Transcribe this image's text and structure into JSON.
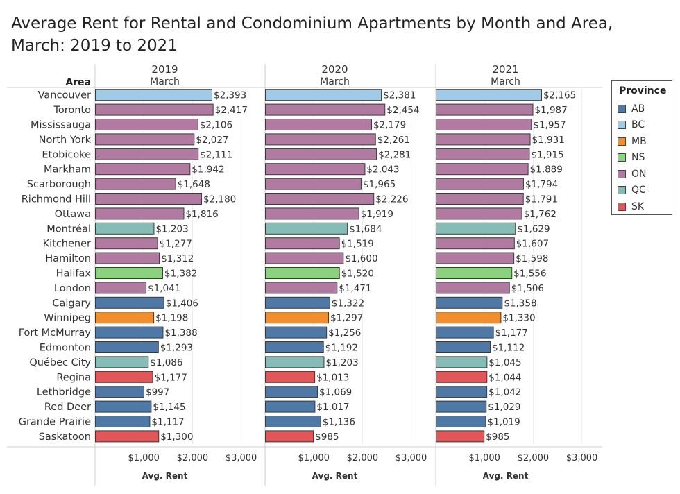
{
  "title": "Average Rent for Rental and Condominium Apartments by Month and Area, March: 2019 to 2021",
  "chart_data": {
    "type": "bar",
    "orientation": "horizontal",
    "row_header": "Area",
    "categories": [
      "Vancouver",
      "Toronto",
      "Mississauga",
      "North York",
      "Etobicoke",
      "Markham",
      "Scarborough",
      "Richmond Hill",
      "Ottawa",
      "Montréal",
      "Kitchener",
      "Hamilton",
      "Halifax",
      "London",
      "Calgary",
      "Winnipeg",
      "Fort McMurray",
      "Edmonton",
      "Québec City",
      "Regina",
      "Lethbridge",
      "Red Deer",
      "Grande Prairie",
      "Saskatoon"
    ],
    "provinces": [
      "BC",
      "ON",
      "ON",
      "ON",
      "ON",
      "ON",
      "ON",
      "ON",
      "ON",
      "QC",
      "ON",
      "ON",
      "NS",
      "ON",
      "AB",
      "MB",
      "AB",
      "AB",
      "QC",
      "SK",
      "AB",
      "AB",
      "AB",
      "SK"
    ],
    "panels": [
      {
        "year": "2019",
        "month": "March",
        "values": [
          2393,
          2417,
          2106,
          2027,
          2111,
          1942,
          1648,
          2180,
          1816,
          1203,
          1277,
          1312,
          1382,
          1041,
          1406,
          1198,
          1388,
          1293,
          1086,
          1177,
          997,
          1145,
          1117,
          1300
        ],
        "labels": [
          "$2,393",
          "$2,417",
          "$2,106",
          "$2,027",
          "$2,111",
          "$1,942",
          "$1,648",
          "$2,180",
          "$1,816",
          "$1,203",
          "$1,277",
          "$1,312",
          "$1,382",
          "$1,041",
          "$1,406",
          "$1,198",
          "$1,388",
          "$1,293",
          "$1,086",
          "$1,177",
          "$997",
          "$1,145",
          "$1,117",
          "$1,300"
        ]
      },
      {
        "year": "2020",
        "month": "March",
        "values": [
          2381,
          2454,
          2179,
          2261,
          2281,
          2043,
          1965,
          2226,
          1919,
          1684,
          1519,
          1600,
          1520,
          1471,
          1322,
          1297,
          1256,
          1192,
          1203,
          1013,
          1069,
          1017,
          1136,
          985
        ],
        "labels": [
          "$2,381",
          "$2,454",
          "$2,179",
          "$2,261",
          "$2,281",
          "$2,043",
          "$1,965",
          "$2,226",
          "$1,919",
          "$1,684",
          "$1,519",
          "$1,600",
          "$1,520",
          "$1,471",
          "$1,322",
          "$1,297",
          "$1,256",
          "$1,192",
          "$1,203",
          "$1,013",
          "$1,069",
          "$1,017",
          "$1,136",
          "$985"
        ]
      },
      {
        "year": "2021",
        "month": "March",
        "values": [
          2165,
          1987,
          1957,
          1931,
          1915,
          1889,
          1794,
          1791,
          1762,
          1629,
          1607,
          1598,
          1556,
          1506,
          1358,
          1330,
          1177,
          1112,
          1045,
          1044,
          1042,
          1029,
          1019,
          985
        ],
        "labels": [
          "$2,165",
          "$1,987",
          "$1,957",
          "$1,931",
          "$1,915",
          "$1,889",
          "$1,794",
          "$1,791",
          "$1,762",
          "$1,629",
          "$1,607",
          "$1,598",
          "$1,556",
          "$1,506",
          "$1,358",
          "$1,330",
          "$1,177",
          "$1,112",
          "$1,045",
          "$1,044",
          "$1,042",
          "$1,029",
          "$1,019",
          "$985"
        ]
      }
    ],
    "xlabel": "Avg. Rent",
    "xlim": [
      0,
      3500
    ],
    "xticks": [
      1000,
      2000,
      3000
    ],
    "xtick_labels": [
      "$1,000",
      "$2,000",
      "$3,000"
    ],
    "grid": true,
    "legend": {
      "title": "Province",
      "placement": "right",
      "entries": [
        {
          "name": "AB",
          "color": "#4e79a7"
        },
        {
          "name": "BC",
          "color": "#a0cbe8"
        },
        {
          "name": "MB",
          "color": "#f28e2b"
        },
        {
          "name": "NS",
          "color": "#8cd17d"
        },
        {
          "name": "ON",
          "color": "#b07aa1"
        },
        {
          "name": "QC",
          "color": "#86bcb6"
        },
        {
          "name": "SK",
          "color": "#e15759"
        }
      ]
    }
  }
}
